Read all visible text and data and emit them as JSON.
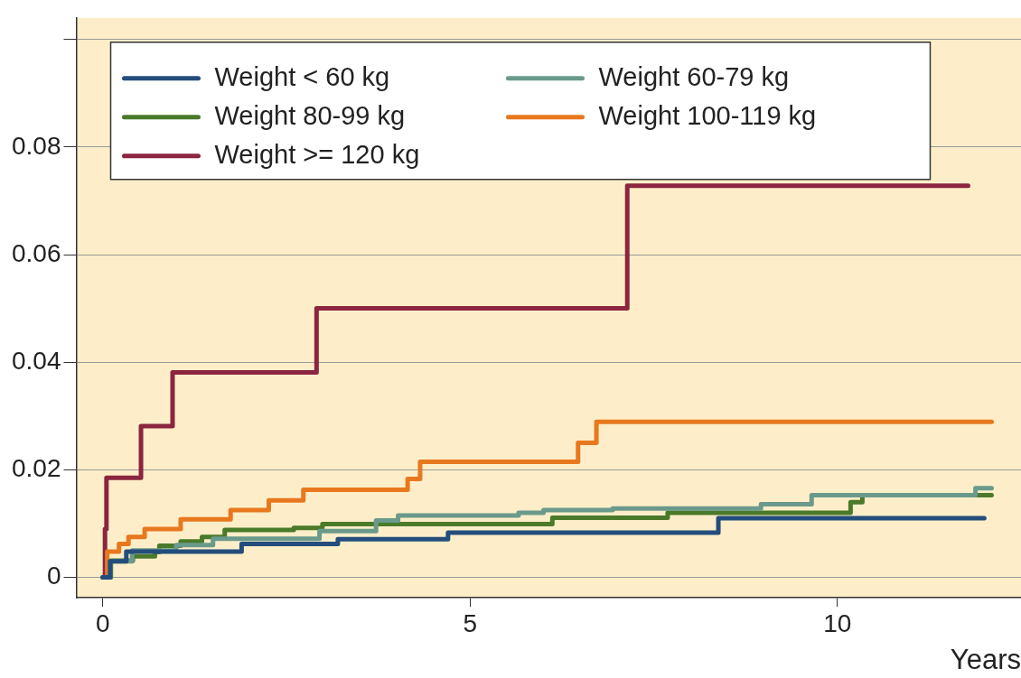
{
  "chart_data": {
    "type": "step",
    "xlabel": "Years",
    "xlim": [
      -0.36,
      12.5
    ],
    "xticks": [
      0,
      5,
      10
    ],
    "ylim": [
      -0.0038,
      0.104
    ],
    "yticks": [
      0,
      0.02,
      0.04,
      0.06,
      0.08,
      {
        "value": 0.1,
        "label": null
      }
    ],
    "grid": "y",
    "legend": "top left",
    "series": [
      {
        "name": "Weight < 60 kg",
        "color": "#234d7c",
        "x": [
          0,
          0.1,
          0.32,
          1.89,
          3.2,
          4.7,
          8.38,
          12.0
        ],
        "values": [
          0,
          0.003,
          0.0048,
          0.0062,
          0.0071,
          0.0083,
          0.011,
          0.011
        ]
      },
      {
        "name": "Weight 60-79 kg",
        "color": "#6a9a8c",
        "x": [
          0,
          0.1,
          0.4,
          1.0,
          1.5,
          2.95,
          3.72,
          4.02,
          5.66,
          6.0,
          6.94,
          8.96,
          9.65,
          11.88,
          12.1
        ],
        "values": [
          0,
          0.003,
          0.005,
          0.006,
          0.0072,
          0.0086,
          0.0106,
          0.0115,
          0.012,
          0.0125,
          0.0128,
          0.0136,
          0.0153,
          0.0166,
          0.0166
        ]
      },
      {
        "name": "Weight 80-99 kg",
        "color": "#4a7a2a",
        "x": [
          0,
          0.11,
          0.41,
          0.71,
          0.77,
          1.06,
          1.35,
          1.66,
          2.6,
          2.99,
          6.12,
          7.69,
          10.18,
          10.34,
          12.1
        ],
        "values": [
          0,
          0.0031,
          0.0039,
          0.0047,
          0.0059,
          0.0067,
          0.0075,
          0.0088,
          0.0092,
          0.0099,
          0.0111,
          0.012,
          0.014,
          0.0153,
          0.0153
        ]
      },
      {
        "name": "Weight 100-119 kg",
        "color": "#e8781e",
        "x": [
          0,
          0.06,
          0.22,
          0.35,
          0.57,
          1.06,
          1.74,
          2.26,
          2.73,
          4.15,
          4.32,
          6.47,
          6.72,
          12.1
        ],
        "values": [
          0,
          0.0048,
          0.0062,
          0.0075,
          0.009,
          0.0108,
          0.0125,
          0.0143,
          0.0163,
          0.0183,
          0.0215,
          0.025,
          0.0289,
          0.0289
        ]
      },
      {
        "name": "Weight >= 120 kg",
        "color": "#8b2540",
        "x": [
          0,
          0.03,
          0.05,
          0.52,
          0.95,
          2.91,
          7.14,
          11.78
        ],
        "values": [
          0,
          0.009,
          0.0185,
          0.0281,
          0.0381,
          0.05,
          0.0728,
          0.0728
        ]
      }
    ]
  }
}
